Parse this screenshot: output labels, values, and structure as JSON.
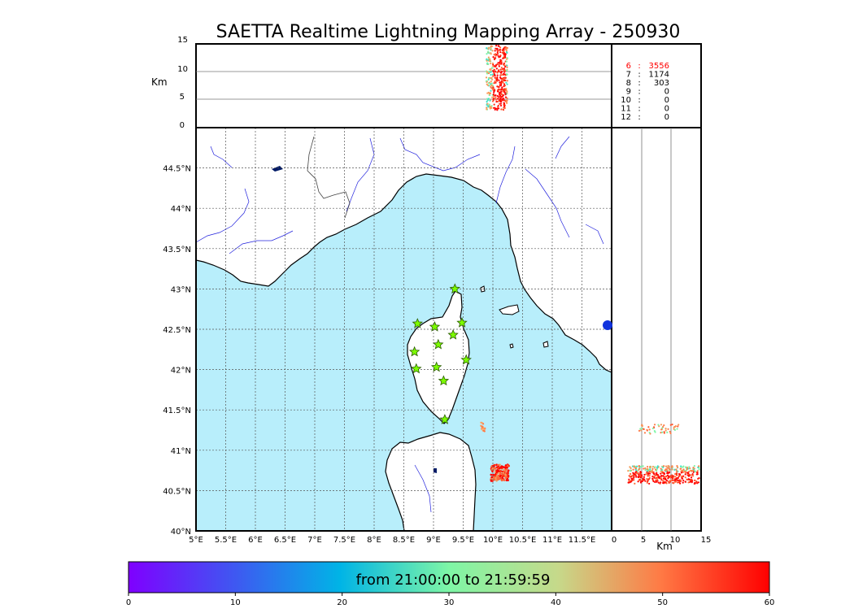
{
  "title": "SAETTA Realtime Lightning Mapping Array - 250930",
  "top_panel": {
    "unit_label": "Km",
    "ticks": [
      "15",
      "10",
      "5",
      "0"
    ]
  },
  "right_panel": {
    "unit_label": "Km",
    "ticks": [
      "0",
      "5",
      "10",
      "15"
    ]
  },
  "station_counts": [
    {
      "stations": "6",
      "count": "3556",
      "highlight": true
    },
    {
      "stations": "7",
      "count": "1174",
      "highlight": false
    },
    {
      "stations": "8",
      "count": "303",
      "highlight": false
    },
    {
      "stations": "9",
      "count": "0",
      "highlight": false
    },
    {
      "stations": "10",
      "count": "0",
      "highlight": false
    },
    {
      "stations": "11",
      "count": "0",
      "highlight": false
    },
    {
      "stations": "12",
      "count": "0",
      "highlight": false
    }
  ],
  "map": {
    "lon_labels": [
      "5°E",
      "5.5°E",
      "6°E",
      "6.5°E",
      "7°E",
      "7.5°E",
      "8°E",
      "8.5°E",
      "9°E",
      "9.5°E",
      "10°E",
      "10.5°E",
      "11°E",
      "11.5°E"
    ],
    "lat_labels": [
      "44.5°N",
      "44°N",
      "43.5°N",
      "43°N",
      "42.5°N",
      "42°N",
      "41.5°N",
      "41°N",
      "40.5°N",
      "40°N"
    ],
    "sea_color": "#b8eefb",
    "land_color": "#ffffff",
    "coast_color": "#000000",
    "river_color": "#2222dd",
    "station_color": "#7cfc00",
    "stations": [
      {
        "lon": 9.36,
        "lat": 43.0
      },
      {
        "lon": 8.73,
        "lat": 42.57
      },
      {
        "lon": 9.02,
        "lat": 42.53
      },
      {
        "lon": 9.48,
        "lat": 42.58
      },
      {
        "lon": 9.08,
        "lat": 42.31
      },
      {
        "lon": 9.33,
        "lat": 42.43
      },
      {
        "lon": 8.68,
        "lat": 42.22
      },
      {
        "lon": 9.55,
        "lat": 42.12
      },
      {
        "lon": 8.71,
        "lat": 42.01
      },
      {
        "lon": 9.05,
        "lat": 42.03
      },
      {
        "lon": 9.17,
        "lat": 41.86
      },
      {
        "lon": 9.19,
        "lat": 41.38
      }
    ],
    "lightning_clusters": [
      {
        "lon": 10.12,
        "lat": 40.72
      },
      {
        "lon": 9.83,
        "lat": 41.28
      }
    ]
  },
  "colorbar": {
    "label": "from 21:00:00 to 21:59:59",
    "ticks": [
      "0",
      "10",
      "20",
      "30",
      "40",
      "50",
      "60"
    ],
    "min": 0,
    "max": 60
  }
}
